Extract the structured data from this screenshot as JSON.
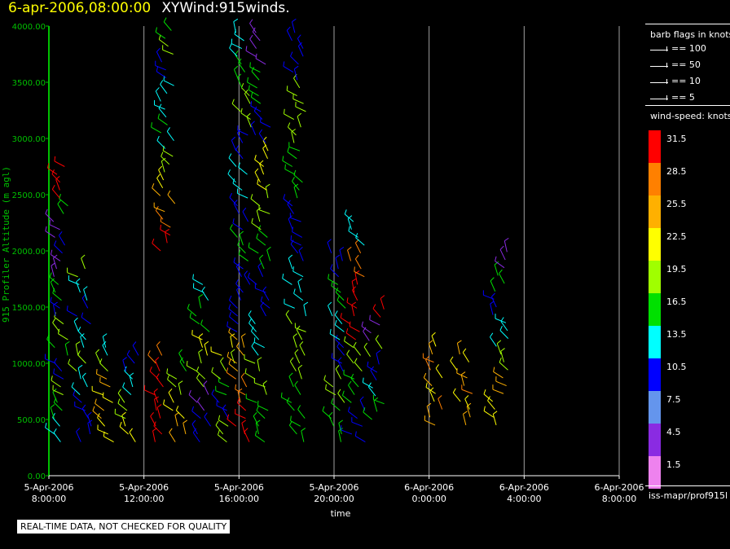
{
  "header": {
    "time": "6-apr-2006,08:00:00",
    "plot_name": "XYWind:915winds."
  },
  "note": "REAL-TIME DATA, NOT CHECKED FOR QUALITY",
  "legend": {
    "flags_title": "barb flags in knots",
    "flags": [
      "== 100",
      "== 50",
      "== 10",
      "== 5"
    ],
    "speed_title": "wind-speed: knots",
    "speed_bins": [
      {
        "label": "31.5",
        "color": "#ff0000"
      },
      {
        "label": "28.5",
        "color": "#ff8000"
      },
      {
        "label": "25.5",
        "color": "#ffb000"
      },
      {
        "label": "22.5",
        "color": "#ffff00"
      },
      {
        "label": "19.5",
        "color": "#a0ff00"
      },
      {
        "label": "16.5",
        "color": "#00e000"
      },
      {
        "label": "13.5",
        "color": "#00ffff"
      },
      {
        "label": "10.5",
        "color": "#0000ff"
      },
      {
        "label": "7.5",
        "color": "#6495ed"
      },
      {
        "label": "4.5",
        "color": "#8a2be2"
      },
      {
        "label": "1.5",
        "color": "#ee82ee"
      }
    ],
    "source": "iss-mapr/prof915l"
  },
  "chart_data": {
    "type": "scatter",
    "marker": "wind-barb",
    "xlabel": "time",
    "ylabel": "915 Profiler Altitude (m agl)",
    "xlim": [
      "5-Apr-2006 8:00:00",
      "6-Apr-2006 8:00:00"
    ],
    "ylim": [
      0,
      4000
    ],
    "x_ticks": [
      [
        "5-Apr-2006",
        "8:00:00"
      ],
      [
        "5-Apr-2006",
        "12:00:00"
      ],
      [
        "5-Apr-2006",
        "16:00:00"
      ],
      [
        "5-Apr-2006",
        "20:00:00"
      ],
      [
        "6-Apr-2006",
        "0:00:00"
      ],
      [
        "6-Apr-2006",
        "4:00:00"
      ],
      [
        "6-Apr-2006",
        "8:00:00"
      ]
    ],
    "y_ticks": [
      "0.00",
      "500.00",
      "1000.00",
      "1500.00",
      "2000.00",
      "2500.00",
      "3000.00",
      "3500.00",
      "4000.00"
    ],
    "grid": "vertical",
    "colors": {
      "axis": "#00c000",
      "tick_label": "#00c000",
      "grid": "#a0a0a0"
    },
    "series": [
      {
        "hours": 0.5,
        "color_bins": [
          "#00ffff",
          "#00e000",
          "#a0ff00",
          "#0000ff",
          "#00e000",
          "#a0ff00",
          "#0000ff",
          "#00e000",
          "#8a2be2",
          "#0000ff",
          "#8a2be2",
          "#00e000",
          "#ff0000",
          "#ff0000"
        ],
        "bottom": 300,
        "top": 2800
      },
      {
        "hours": 1.5,
        "color_bins": [
          "#0000ff",
          "#0000ff",
          "#00ffff",
          "#a0ff00",
          "#00ffff",
          "#0000ff",
          "#00ffff",
          "#a0ff00"
        ],
        "bottom": 300,
        "top": 1900
      },
      {
        "hours": 2.5,
        "color_bins": [
          "#ffff00",
          "#ffb000",
          "#ffff00",
          "#ffb000",
          "#a0ff00",
          "#00ffff"
        ],
        "bottom": 300,
        "top": 1200
      },
      {
        "hours": 3.5,
        "color_bins": [
          "#ffff00",
          "#a0ff00",
          "#00ffff",
          "#0000ff"
        ],
        "bottom": 300,
        "top": 1100
      },
      {
        "hours": 4.5,
        "color_bins": [
          "#ff0000",
          "#ff0000",
          "#ff0000",
          "#ff0000",
          "#ff0000",
          "#ff8000"
        ],
        "bottom": 300,
        "top": 1100
      },
      {
        "hours": 5.0,
        "color_bins": [
          "#ff0000",
          "#ff8000",
          "#ffb000",
          "#ffff00",
          "#a0ff00",
          "#00ffff",
          "#00e000",
          "#00ffff",
          "#00ffff",
          "#0000ff",
          "#a0ff00",
          "#00e000"
        ],
        "bottom": 2000,
        "top": 4000
      },
      {
        "hours": 5.5,
        "color_bins": [
          "#ffb000",
          "#ffff00",
          "#a0ff00",
          "#00e000"
        ],
        "bottom": 300,
        "top": 1000
      },
      {
        "hours": 6.5,
        "color_bins": [
          "#0000ff",
          "#8a2be2",
          "#a0ff00",
          "#ffff00",
          "#00e000",
          "#00ffff"
        ],
        "bottom": 300,
        "top": 1700
      },
      {
        "hours": 7.5,
        "color_bins": [
          "#a0ff00",
          "#0000ff",
          "#00e000",
          "#a0ff00",
          "#ffff00"
        ],
        "bottom": 300,
        "top": 1200
      },
      {
        "hours": 8.2,
        "color_bins": [
          "#ff0000",
          "#ff8000",
          "#ffb000",
          "#0000ff",
          "#0000ff",
          "#00e000",
          "#0000ff",
          "#00ffff",
          "#0000ff",
          "#a0ff00",
          "#00e000",
          "#00ffff"
        ],
        "bottom": 300,
        "top": 4000
      },
      {
        "hours": 9.0,
        "color_bins": [
          "#00e000",
          "#a0ff00",
          "#00ffff",
          "#0000ff",
          "#00e000",
          "#a0ff00",
          "#ffff00",
          "#0000ff",
          "#00e000",
          "#8a2be2"
        ],
        "bottom": 300,
        "top": 4000
      },
      {
        "hours": 10.5,
        "color_bins": [
          "#00e000",
          "#a0ff00",
          "#00ffff",
          "#0000ff",
          "#00e000",
          "#a0ff00",
          "#0000ff"
        ],
        "bottom": 300,
        "top": 4000
      },
      {
        "hours": 12.2,
        "color_bins": [
          "#00e000",
          "#a0ff00",
          "#0000ff",
          "#00ffff",
          "#00e000",
          "#0000ff"
        ],
        "bottom": 300,
        "top": 2000
      },
      {
        "hours": 13.0,
        "color_bins": [
          "#0000ff",
          "#00e000",
          "#a0ff00",
          "#ff0000",
          "#ff0000",
          "#ff8000",
          "#00ffff"
        ],
        "bottom": 300,
        "top": 2300
      },
      {
        "hours": 13.8,
        "color_bins": [
          "#00e000",
          "#00ffff",
          "#0000ff",
          "#a0ff00",
          "#8a2be2",
          "#ff0000"
        ],
        "bottom": 500,
        "top": 1500
      },
      {
        "hours": 16.3,
        "color_bins": [
          "#ffb000",
          "#ff8000",
          "#ffff00",
          "#ffb000",
          "#ffff00",
          "#ff8000",
          "#ffb000",
          "#ffff00"
        ],
        "bottom": 450,
        "top": 1200
      },
      {
        "hours": 17.5,
        "color_bins": [
          "#ffb000",
          "#ffff00",
          "#ff8000",
          "#ffb000",
          "#ffff00",
          "#ffb000"
        ],
        "bottom": 450,
        "top": 1100
      },
      {
        "hours": 19.0,
        "color_bins": [
          "#ffff00",
          "#ffb000",
          "#a0ff00",
          "#00ffff",
          "#0000ff",
          "#00e000",
          "#8a2be2"
        ],
        "bottom": 450,
        "top": 2000
      }
    ]
  }
}
